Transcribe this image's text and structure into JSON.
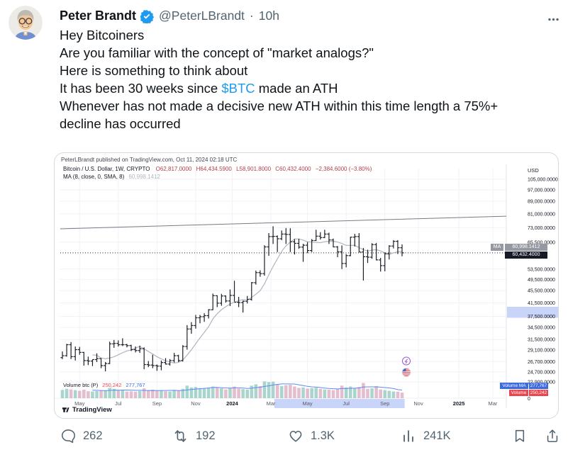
{
  "tweet": {
    "author": {
      "name": "Peter Brandt",
      "handle": "@PeterLBrandt",
      "separator": "·",
      "time": "10h"
    },
    "body": {
      "line1": "Hey Bitcoiners",
      "line2": "Are you familiar with the concept of \"market analogs?\"",
      "line3": "Here is something to think about",
      "line4_pre": "It has been 30 weeks since ",
      "line4_link": "$BTC",
      "line4_post": " made an ATH",
      "line5": "Whenever has not made a decisive new ATH within this time length a 75%+",
      "line6": "decline has occurred"
    },
    "actions": {
      "replies": "262",
      "reposts": "192",
      "likes": "1.3K",
      "views": "241K"
    },
    "colors": {
      "link_blue": "#1d9bf0",
      "verified_blue": "#1d9bf0",
      "meta_gray": "#536471"
    }
  },
  "chart": {
    "attribution": "PeterLBrandt published on TradingView.com, Oct 11, 2024 02:18 UTC",
    "symbol_line": {
      "symbol": "Bitcoin / U.S. Dollar, 1W, CRYPTO",
      "o": "O62,817.0000",
      "h": "H64,434.5900",
      "l": "L58,901.8000",
      "c": "C60,432.4000",
      "change": "−2,384.6000 (−3.80%)"
    },
    "ma_line": {
      "label": "MA (8, close, 0, SMA, 8)",
      "value": "60,998.1412"
    },
    "volume_row": {
      "label": "Volume btc (P)",
      "value": "250,242",
      "ma_value": "277,767"
    },
    "axis_currency": "USD",
    "badges": {
      "ma_prefix": "MA",
      "ma_value": "60,998.1412",
      "price": "60,432.4000",
      "volume_ma_label": "Volume MA",
      "volume_ma_value": "277,767",
      "volume_label": "Volume",
      "volume_value": "250,242"
    },
    "watermark": "TradingView"
  },
  "chart_data": {
    "type": "ohlc-bar",
    "title": "Bitcoin / U.S. Dollar, 1W, CRYPTO",
    "log_scale": true,
    "price_axis_range": [
      22000,
      107000
    ],
    "current_price": 60432.4,
    "ma_period": 8,
    "ma_value": 60998.1412,
    "trendline": {
      "price_left": 72400,
      "price_right": 79600
    },
    "axis_highlight": {
      "from": 40300,
      "to": 37100
    },
    "highlight_bars": {
      "start": 49.3,
      "end": 79.6
    },
    "price_ticks": [
      105000,
      97000,
      89000,
      81000,
      73000,
      65500,
      53500,
      49500,
      45500,
      41500,
      37500,
      34500,
      31500,
      29100,
      26700,
      24700,
      22900
    ],
    "x_labels": [
      {
        "label": "May",
        "bar": 4
      },
      {
        "label": "Jul",
        "bar": 13
      },
      {
        "label": "Sep",
        "bar": 22
      },
      {
        "label": "Nov",
        "bar": 31
      },
      {
        "label": "2024",
        "bar": 39.5,
        "bold": true
      },
      {
        "label": "Mar",
        "bar": 48.5
      },
      {
        "label": "May",
        "bar": 57
      },
      {
        "label": "Jul",
        "bar": 66
      },
      {
        "label": "Sep",
        "bar": 75
      },
      {
        "label": "Nov",
        "bar": 82.8
      },
      {
        "label": "2025",
        "bar": 92.2,
        "bold": true
      },
      {
        "label": "Mar",
        "bar": 100.1
      }
    ],
    "candles": [
      [
        27500,
        28800,
        27200,
        27900
      ],
      [
        27900,
        30500,
        27700,
        30300
      ],
      [
        30300,
        30900,
        27200,
        27700
      ],
      [
        27700,
        29900,
        26900,
        29200
      ],
      [
        29200,
        29800,
        28100,
        28600
      ],
      [
        28600,
        28700,
        25900,
        26900
      ],
      [
        26900,
        27700,
        26000,
        26800
      ],
      [
        26800,
        27100,
        25800,
        27100
      ],
      [
        27100,
        28400,
        26600,
        27300
      ],
      [
        27300,
        27400,
        25400,
        25900
      ],
      [
        25900,
        26600,
        24800,
        26300
      ],
      [
        26300,
        31000,
        26200,
        30500
      ],
      [
        30500,
        31400,
        29600,
        30600
      ],
      [
        30600,
        31300,
        29900,
        30300
      ],
      [
        30300,
        31800,
        30000,
        30300
      ],
      [
        30300,
        30500,
        29700,
        30100
      ],
      [
        30100,
        30300,
        28900,
        29200
      ],
      [
        29200,
        29900,
        28600,
        29000
      ],
      [
        29000,
        30100,
        28500,
        29400
      ],
      [
        29400,
        29700,
        25200,
        26100
      ],
      [
        26100,
        26800,
        25600,
        26000
      ],
      [
        26000,
        28100,
        25400,
        25900
      ],
      [
        25900,
        26100,
        24900,
        25800
      ],
      [
        25800,
        26900,
        25000,
        26500
      ],
      [
        26500,
        27400,
        26100,
        26200
      ],
      [
        26200,
        27200,
        25900,
        26900
      ],
      [
        26900,
        28500,
        26500,
        27900
      ],
      [
        27900,
        28100,
        26600,
        26900
      ],
      [
        26900,
        30200,
        26700,
        29900
      ],
      [
        29900,
        35100,
        29200,
        34100
      ],
      [
        34100,
        35900,
        32900,
        35000
      ],
      [
        35000,
        37900,
        34200,
        37100
      ],
      [
        37100,
        37900,
        35600,
        37400
      ],
      [
        37400,
        38400,
        36000,
        37700
      ],
      [
        37700,
        39600,
        36900,
        39400
      ],
      [
        39400,
        44500,
        39300,
        43800
      ],
      [
        43800,
        43900,
        40200,
        41400
      ],
      [
        41400,
        44400,
        40600,
        43700
      ],
      [
        43700,
        43900,
        41600,
        42100
      ],
      [
        42100,
        45900,
        40500,
        43900
      ],
      [
        43900,
        49000,
        41900,
        41700
      ],
      [
        41700,
        43400,
        40200,
        41600
      ],
      [
        41600,
        42200,
        38600,
        42000
      ],
      [
        42000,
        43700,
        41300,
        42600
      ],
      [
        42600,
        48500,
        42200,
        48300
      ],
      [
        48300,
        52900,
        47600,
        52100
      ],
      [
        52100,
        53000,
        50500,
        51700
      ],
      [
        51700,
        64000,
        50900,
        63200
      ],
      [
        63200,
        70100,
        59100,
        68300
      ],
      [
        68300,
        73800,
        64600,
        68400
      ],
      [
        68400,
        68900,
        60800,
        67200
      ],
      [
        67200,
        71500,
        66500,
        69600
      ],
      [
        69600,
        72800,
        64600,
        69400
      ],
      [
        69400,
        72700,
        60800,
        65700
      ],
      [
        65700,
        67000,
        59700,
        64900
      ],
      [
        64900,
        67200,
        62300,
        63100
      ],
      [
        63100,
        64700,
        56500,
        64000
      ],
      [
        64000,
        65500,
        60300,
        61500
      ],
      [
        61500,
        67000,
        60800,
        66300
      ],
      [
        66300,
        71900,
        66100,
        68500
      ],
      [
        68500,
        70600,
        66800,
        67800
      ],
      [
        67800,
        71900,
        67500,
        69600
      ],
      [
        69600,
        70300,
        64600,
        66600
      ],
      [
        66600,
        67300,
        63000,
        63200
      ],
      [
        63200,
        63600,
        58500,
        60900
      ],
      [
        60900,
        63900,
        53500,
        55800
      ],
      [
        55800,
        59900,
        54200,
        59200
      ],
      [
        59200,
        68200,
        58900,
        68000
      ],
      [
        68000,
        69700,
        63400,
        68300
      ],
      [
        68300,
        70100,
        60700,
        60800
      ],
      [
        60800,
        62700,
        49100,
        58700
      ],
      [
        58700,
        61900,
        56000,
        58500
      ],
      [
        58500,
        65000,
        57800,
        64300
      ],
      [
        64300,
        65100,
        57100,
        57300
      ],
      [
        57300,
        58200,
        52500,
        54900
      ],
      [
        54900,
        60700,
        52600,
        60000
      ],
      [
        60000,
        64000,
        57500,
        63600
      ],
      [
        63600,
        66500,
        62500,
        65900
      ],
      [
        65900,
        66500,
        59900,
        62800
      ],
      [
        62800,
        64400,
        58900,
        60432
      ]
    ],
    "volumes": [
      370000,
      420000,
      390000,
      360000,
      330000,
      380000,
      310000,
      300000,
      320000,
      350000,
      340000,
      460000,
      420000,
      360000,
      350000,
      300000,
      310000,
      290000,
      320000,
      440000,
      360000,
      380000,
      330000,
      340000,
      310000,
      300000,
      360000,
      330000,
      420000,
      560000,
      480000,
      500000,
      450000,
      430000,
      470000,
      520000,
      460000,
      440000,
      390000,
      460000,
      520000,
      430000,
      410000,
      380000,
      560000,
      620000,
      540000,
      750000,
      720000,
      740000,
      620000,
      540000,
      580000,
      600000,
      520000,
      460000,
      480000,
      430000,
      450000,
      470000,
      420000,
      390000,
      380000,
      360000,
      420000,
      560000,
      480000,
      520000,
      460000,
      500000,
      680000,
      420000,
      440000,
      540000,
      390000,
      360000,
      330000,
      300000,
      290000,
      250000
    ],
    "volume_scale_max": 760000,
    "colors": {
      "bar": "#1c1f26",
      "ma": "#b2b5be",
      "vol_up": "#7cc0b4",
      "vol_down": "#d69ab5",
      "vol_ma": "#5b8def",
      "highlight": "#c9d5f8",
      "trendline": "#787b86",
      "grid": "#f0f2f7",
      "dotted": "#131722"
    }
  }
}
